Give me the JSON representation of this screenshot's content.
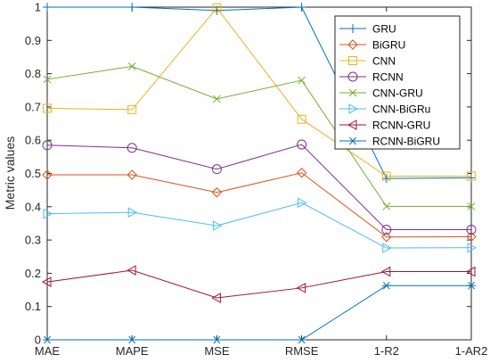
{
  "chart_data": {
    "type": "line",
    "categories": [
      "MAE",
      "MAPE",
      "MSE",
      "RMSE",
      "1-R2",
      "1-AR2"
    ],
    "xlabel": "",
    "ylabel": "Metric values",
    "ylim": [
      0,
      1
    ],
    "yticks": [
      "0",
      "0.1",
      "0.2",
      "0.3",
      "0.4",
      "0.5",
      "0.6",
      "0.7",
      "0.8",
      "0.9",
      "1"
    ],
    "grid": false,
    "legend_position": "top-right",
    "series": [
      {
        "name": "GRU",
        "color": "#0072BD",
        "marker": "plus",
        "values": [
          1,
          1,
          0.99,
          1,
          0.485,
          0.487
        ]
      },
      {
        "name": "BiGRU",
        "color": "#D95319",
        "marker": "diamond",
        "values": [
          0.496,
          0.496,
          0.443,
          0.502,
          0.309,
          0.31
        ]
      },
      {
        "name": "CNN",
        "color": "#EDB120",
        "marker": "square",
        "values": [
          0.696,
          0.692,
          0.998,
          0.663,
          0.492,
          0.492
        ]
      },
      {
        "name": "RCNN",
        "color": "#7E2F8E",
        "marker": "circle",
        "values": [
          0.585,
          0.577,
          0.513,
          0.587,
          0.331,
          0.331
        ]
      },
      {
        "name": "CNN-GRU",
        "color": "#77AC30",
        "marker": "x",
        "values": [
          0.783,
          0.822,
          0.724,
          0.78,
          0.401,
          0.401
        ]
      },
      {
        "name": "CNN-BiGRu",
        "color": "#4DBEEE",
        "marker": "triangle-right",
        "values": [
          0.379,
          0.383,
          0.343,
          0.412,
          0.276,
          0.277
        ]
      },
      {
        "name": "RCNN-GRU",
        "color": "#A2142F",
        "marker": "triangle-left",
        "values": [
          0.174,
          0.209,
          0.126,
          0.156,
          0.205,
          0.205
        ]
      },
      {
        "name": "RCNN-BiGRU",
        "color": "#0072BD",
        "marker": "asterisk",
        "values": [
          0,
          0,
          0,
          0,
          0.163,
          0.163
        ]
      }
    ]
  }
}
